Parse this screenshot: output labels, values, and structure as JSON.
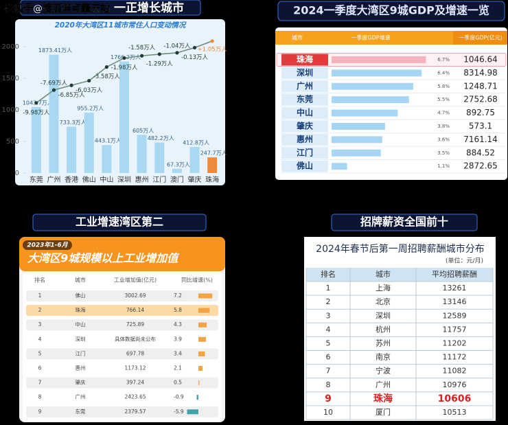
{
  "watermark": "搜狐号@搜狐焦点肇庆站",
  "chart_data": {
    "type": "bar",
    "title": "一正增长城市",
    "subtitle": "2020年大湾区11城市常住人口变动情况",
    "categories": [
      "东莞",
      "广州",
      "香港",
      "佛山",
      "中山",
      "深圳",
      "惠州",
      "江门",
      "澳门",
      "肇庆",
      "珠海"
    ],
    "series": [
      {
        "type": "bar",
        "color": "#a9d8f2",
        "colors": [
          "#a9d8f2",
          "#a9d8f2",
          "#a9d8f2",
          "#a9d8f2",
          "#a9d8f2",
          "#a9d8f2",
          "#a9d8f2",
          "#a9d8f2",
          "#a9d8f2",
          "#a9d8f2",
          "#f08a3a"
        ],
        "values": [
          1043.7,
          1873.41,
          733.3,
          955.2,
          443.1,
          1766.2,
          605,
          482.2,
          67.3,
          412.8,
          247.7
        ],
        "value_labels": [
          "1043.7万人",
          "1873.41万人",
          "733.3万人",
          "955.2万人",
          "443.1万人",
          "1766.2万人",
          "605万人",
          "482.2万人",
          "67.3万人",
          "412.8万人",
          "247.7万人"
        ]
      },
      {
        "type": "line",
        "axis": "y2",
        "color": "#6f8f7c",
        "colors": [
          "#1f3d34",
          "#1f3d34",
          "#1f3d34",
          "#1f3d34",
          "#1f3d34",
          "#1f3d34",
          "#1f3d34",
          "#1f3d34",
          "#1f3d34",
          "#1f3d34",
          "#f08a3a"
        ],
        "values": [
          -9.98,
          -7.69,
          -6.85,
          -6.03,
          -3.58,
          -1.98,
          -1.58,
          -1.29,
          -1.04,
          -0.13,
          1.05
        ],
        "value_labels": [
          "-9.98万人",
          "-7.69万人",
          "-6.85万人",
          "-6.03万人",
          "-3.58万人",
          "-1.98万人",
          "-1.58万人",
          "-1.29万人",
          "-1.04万人",
          "-0.13万人",
          "+1.05万人"
        ]
      }
    ],
    "ylim": [
      0,
      2200
    ],
    "yticks": [
      0,
      500,
      1000,
      1500,
      2000
    ],
    "y2lim": [
      -22.5,
      2.3
    ],
    "grid": false
  },
  "gdp": {
    "title": "2024一季度大湾区9城GDP及增速一览",
    "headers": [
      "城市",
      "一季度GDP增速",
      "一季度GDP(亿元)"
    ],
    "rows": [
      {
        "city": "珠海",
        "growth": 6.7,
        "growth_label": "6.7%",
        "gdp": 1046.64,
        "highlight": true
      },
      {
        "city": "深圳",
        "growth": 6.4,
        "growth_label": "6.4%",
        "gdp": 8314.98
      },
      {
        "city": "广州",
        "growth": 5.8,
        "growth_label": "5.8%",
        "gdp": 1248.71
      },
      {
        "city": "东莞",
        "growth": 5.5,
        "growth_label": "5.5%",
        "gdp": 2752.68
      },
      {
        "city": "中山",
        "growth": 4.7,
        "growth_label": "4.7%",
        "gdp": 892.75
      },
      {
        "city": "肇庆",
        "growth": 3.8,
        "growth_label": "3.8%",
        "gdp": 573.1
      },
      {
        "city": "惠州",
        "growth": 3.6,
        "growth_label": "3.6%",
        "gdp": 7161.14
      },
      {
        "city": "江门",
        "growth": 3.5,
        "growth_label": "3.5%",
        "gdp": 884.52
      },
      {
        "city": "佛山",
        "growth": 1.1,
        "growth_label": "1.1%",
        "gdp": 2872.65
      }
    ]
  },
  "industry": {
    "title": "工业增速湾区第二",
    "date": "2023年1-6月",
    "subtitle": "大湾区9城规模以上工业增加值",
    "headers": [
      "排名",
      "城市",
      "工业增加值(亿元)",
      "同比增速(%)"
    ],
    "rows": [
      {
        "rank": 1,
        "city": "佛山",
        "value": 3002.69,
        "growth": 7.2
      },
      {
        "rank": 2,
        "city": "珠海",
        "value": 766.14,
        "growth": 5.8,
        "highlight": true
      },
      {
        "rank": 3,
        "city": "中山",
        "value": 725.89,
        "growth": 4.3
      },
      {
        "rank": 4,
        "city": "深圳",
        "value": "具体数据尚未公布",
        "growth": 3.9
      },
      {
        "rank": 5,
        "city": "江门",
        "value": 697.78,
        "growth": 3.4
      },
      {
        "rank": 6,
        "city": "惠州",
        "value": 1173.12,
        "growth": 2.1
      },
      {
        "rank": 7,
        "city": "肇庆",
        "value": 397.24,
        "growth": 0.5
      },
      {
        "rank": 8,
        "city": "广州",
        "value": 2423.65,
        "growth": -0.9
      },
      {
        "rank": 9,
        "city": "东莞",
        "value": 2379.57,
        "growth": -5.9
      }
    ]
  },
  "salary": {
    "title": "招牌薪资全国前十",
    "subtitle": "2024年春节后第一周招聘薪酬城市分布",
    "unit": "(单位：元/月)",
    "headers": [
      "排名",
      "城市",
      "平均招聘薪酬"
    ],
    "rows": [
      {
        "rank": 1,
        "city": "上海",
        "salary": 13261
      },
      {
        "rank": 2,
        "city": "北京",
        "salary": 13146
      },
      {
        "rank": 3,
        "city": "深圳",
        "salary": 12589
      },
      {
        "rank": 4,
        "city": "杭州",
        "salary": 11757
      },
      {
        "rank": 5,
        "city": "苏州",
        "salary": 11202
      },
      {
        "rank": 6,
        "city": "南京",
        "salary": 11172
      },
      {
        "rank": 7,
        "city": "宁波",
        "salary": 11082
      },
      {
        "rank": 8,
        "city": "广州",
        "salary": 10976
      },
      {
        "rank": 9,
        "city": "珠海",
        "salary": 10606,
        "highlight": true
      },
      {
        "rank": 10,
        "city": "厦门",
        "salary": 10513
      }
    ]
  }
}
